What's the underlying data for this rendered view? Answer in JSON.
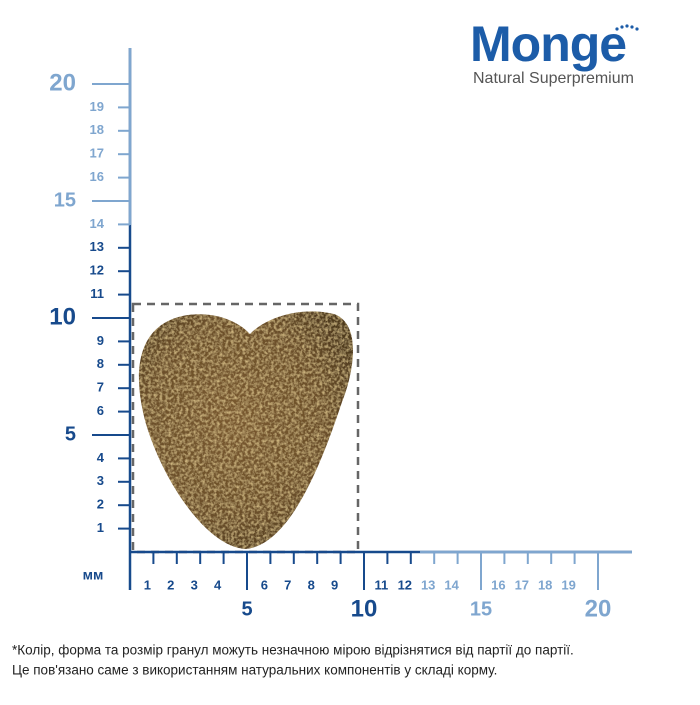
{
  "brand": {
    "name": "Monge",
    "tagline": "Natural Superpremium"
  },
  "ruler": {
    "unit": "мм",
    "y_minor": [
      1,
      2,
      3,
      4,
      6,
      7,
      8,
      9,
      11,
      12,
      13,
      14,
      16,
      17,
      18,
      19
    ],
    "y_major": [
      5,
      10,
      15,
      20
    ],
    "x_minor": [
      1,
      2,
      3,
      4,
      6,
      7,
      8,
      9,
      11,
      12,
      13,
      14,
      16,
      17,
      18,
      19
    ],
    "x_major": [
      5,
      10,
      15,
      20
    ]
  },
  "footnote": [
    "*Колір, форма та розмір гранул можуть незначною мірою відрізнятися від партії до партії.",
    "Це пов'язано саме з використанням натуральних компонентів у складі корму."
  ]
}
